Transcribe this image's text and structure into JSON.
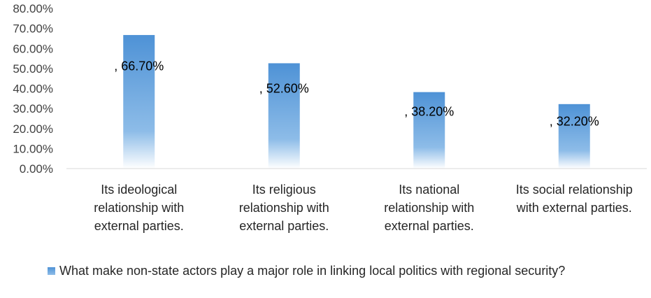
{
  "chart_data": {
    "type": "bar",
    "categories": [
      "Its ideological relationship with external parties.",
      "Its religious relationship with external parties.",
      "Its national relationship with external parties.",
      "Its social relationship with external parties."
    ],
    "category_lines": [
      [
        "Its ideological",
        "relationship with",
        "external parties."
      ],
      [
        "Its religious",
        "relationship with",
        "external parties."
      ],
      [
        "Its national",
        "relationship with",
        "external parties."
      ],
      [
        "Its social relationship",
        "with external parties."
      ]
    ],
    "series": [
      {
        "name": "What make non-state actors play a major role in linking local politics with regional security?",
        "values": [
          66.7,
          52.6,
          38.2,
          32.2
        ]
      }
    ],
    "data_labels": [
      ", 66.70%",
      ", 52.60%",
      ", 38.20%",
      ", 32.20%"
    ],
    "yticks": [
      "0.00%",
      "10.00%",
      "20.00%",
      "30.00%",
      "40.00%",
      "50.00%",
      "60.00%",
      "70.00%",
      "80.00%"
    ],
    "ylim": [
      0,
      80
    ],
    "legend_position": "bottom",
    "grid": false,
    "bar_color": "#5b9bd5"
  }
}
